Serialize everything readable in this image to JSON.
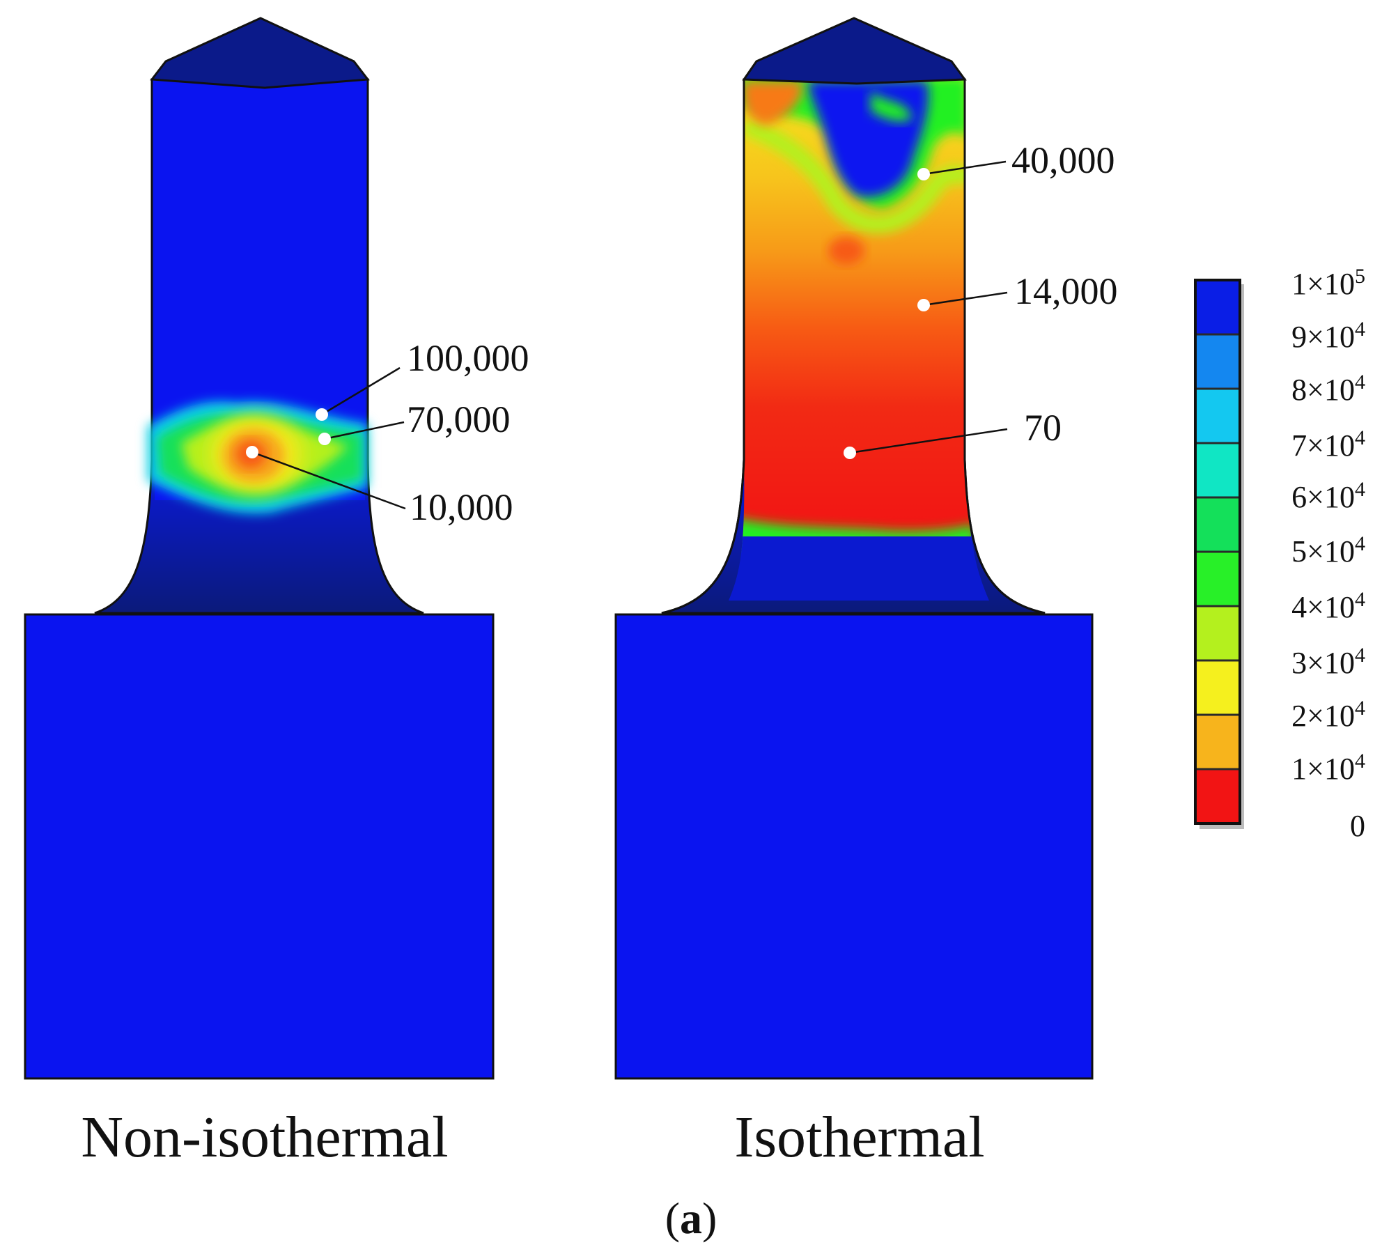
{
  "figure": {
    "panel_label_open": "(",
    "panel_label_letter": "a",
    "panel_label_close": ")",
    "colors": {
      "blue": "#0a14f0",
      "navy": "#0b1a7a",
      "light_blue": "#14a8f0",
      "cyan": "#10e8dc",
      "green": "#14e05a",
      "bright_green": "#22f022",
      "yellow_green": "#b4f01e",
      "yellow": "#f5f01e",
      "orange_yellow": "#f7b41c",
      "orange": "#f77a14",
      "red": "#f21414"
    }
  },
  "panels": [
    {
      "caption": "Non-isothermal",
      "annotations": [
        {
          "label": "100,000",
          "value": 100000
        },
        {
          "label": "70,000",
          "value": 70000
        },
        {
          "label": "10,000",
          "value": 10000
        }
      ]
    },
    {
      "caption": "Isothermal",
      "annotations": [
        {
          "label": "40,000",
          "value": 40000
        },
        {
          "label": "14,000",
          "value": 14000
        },
        {
          "label": "70",
          "value": 70
        }
      ]
    }
  ],
  "legend": {
    "levels": [
      {
        "mant": "1×10",
        "exp": "5",
        "value": 100000,
        "color": "#0a1ee6"
      },
      {
        "mant": "9×10",
        "exp": "4",
        "value": 90000,
        "color": "#1487f0"
      },
      {
        "mant": "8×10",
        "exp": "4",
        "value": 80000,
        "color": "#14c8f0"
      },
      {
        "mant": "7×10",
        "exp": "4",
        "value": 70000,
        "color": "#10e6c4"
      },
      {
        "mant": "6×10",
        "exp": "4",
        "value": 60000,
        "color": "#14e05a"
      },
      {
        "mant": "5×10",
        "exp": "4",
        "value": 50000,
        "color": "#28f028"
      },
      {
        "mant": "4×10",
        "exp": "4",
        "value": 40000,
        "color": "#b4f01e"
      },
      {
        "mant": "3×10",
        "exp": "4",
        "value": 30000,
        "color": "#f5f01e"
      },
      {
        "mant": "2×10",
        "exp": "4",
        "value": 20000,
        "color": "#f7b41c"
      },
      {
        "mant": "1×10",
        "exp": "4",
        "value": 10000,
        "color": "#f77a14"
      },
      {
        "mant": "0",
        "exp": "",
        "value": 0,
        "color": "#f21414"
      }
    ]
  }
}
